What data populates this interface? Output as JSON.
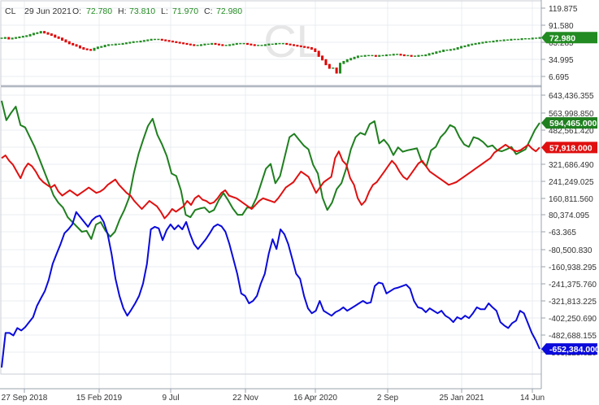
{
  "header": {
    "symbol": "CL",
    "date": "29 Jun 2021",
    "open_label": "O:",
    "open": "72.780",
    "high_label": "H:",
    "high": "73.810",
    "low_label": "L:",
    "low": "71.970",
    "close_label": "C:",
    "close": "72.980"
  },
  "watermark": "CL",
  "colors": {
    "up": "#228b22",
    "down": "#e00000",
    "green_series": "#1f7f1f",
    "red_series": "#e01010",
    "blue_series": "#0a0adc",
    "grid": "#e8ecf1",
    "axis_text": "#333333"
  },
  "chart_data": {
    "type": "line",
    "x_labels": [
      "27 Sep 2018",
      "15 Feb 2019",
      "9 Jul",
      "22 Nov",
      "16 Apr 2020",
      "2 Sep",
      "25 Jan 2021",
      "14 Jun"
    ],
    "panels": [
      {
        "name": "price",
        "type": "candlestick",
        "y_ticks": [
          "119.875",
          "91.580",
          "63.285",
          "34.995",
          "6.695"
        ],
        "ylim": [
          0,
          125
        ],
        "last_value_label": "72.980",
        "series": [
          {
            "values": [
              72,
              73,
              71,
              72,
              73,
              74,
              75,
              76,
              78,
              80,
              81,
              83,
              81,
              79,
              77,
              74,
              72,
              69,
              66,
              63,
              61,
              59,
              56,
              54,
              53,
              52,
              55,
              57,
              58,
              60,
              61,
              61,
              62,
              62,
              63,
              64,
              65,
              66,
              66,
              67,
              68,
              69,
              70,
              70,
              70,
              69,
              68,
              67,
              66,
              65,
              64,
              63,
              62,
              61,
              60,
              60,
              61,
              62,
              62,
              63,
              62,
              61,
              60,
              60,
              61,
              62,
              63,
              63,
              63,
              62,
              61,
              60,
              60,
              60,
              61,
              62,
              62,
              63,
              63,
              63,
              62,
              61,
              60,
              59,
              58,
              57,
              56,
              54,
              50,
              42,
              36,
              28,
              22,
              22,
              14,
              30,
              33,
              36,
              38,
              40,
              42,
              42,
              43,
              43,
              43,
              42,
              43,
              43,
              44,
              44,
              45,
              45,
              44,
              43,
              43,
              42,
              42,
              43,
              43,
              44,
              46,
              47,
              49,
              50,
              52,
              52,
              53,
              54,
              56,
              58,
              59,
              61,
              62,
              63,
              64,
              65,
              66,
              66,
              67,
              68,
              68,
              69,
              69,
              70,
              70,
              70,
              71,
              71,
              71,
              72,
              72,
              73
            ]
          }
        ]
      },
      {
        "name": "green",
        "y_ticks": [
          "643,436.355",
          "563,998.850",
          "482,561.420",
          "402,123.955",
          "321,686.490",
          "241,249.025",
          "160,811.560"
        ],
        "ylim": [
          80000,
          660000
        ],
        "last_value_label": "594,465.000",
        "series": [
          {
            "values": [
              640000,
              600000,
              615000,
              628000,
              590000,
              585000,
              565000,
              545000,
              520000,
              495000,
              470000,
              445000,
              430000,
              420000,
              400000,
              390000,
              380000,
              370000,
              372000,
              355000,
              385000,
              390000,
              372000,
              360000,
              370000,
              395000,
              415000,
              440000,
              490000,
              530000,
              560000,
              588000,
              603000,
              570000,
              550000,
              526000,
              490000,
              485000,
              455000,
              405000,
              400000,
              415000,
              418000,
              420000,
              410000,
              415000,
              435000,
              450000,
              435000,
              418000,
              405000,
              405000,
              420000,
              420000,
              440000,
              470000,
              500000,
              510000,
              470000,
              485000,
              525000,
              565000,
              572000,
              560000,
              548000,
              540000,
              508000,
              490000,
              440000,
              415000,
              430000,
              458000,
              470000,
              500000,
              540000,
              565000,
              574000,
              570000,
              592000,
              598000,
              552000,
              560000,
              548000,
              528000,
              544000,
              535000,
              538000,
              540000,
              542000,
              515000,
              505000,
              538000,
              545000,
              565000,
              575000,
              590000,
              585000,
              565000,
              550000,
              545000,
              565000,
              562000,
              555000,
              545000,
              548000,
              538000,
              536000,
              540000,
              545000,
              530000,
              535000,
              540000,
              560000,
              580000,
              594465
            ]
          }
        ]
      },
      {
        "name": "red",
        "y_ticks": [
          "80,374.095",
          "-63.365",
          "-80,500.830"
        ],
        "ylim": [
          -110000,
          100000
        ],
        "last_value_label": "57,918.000",
        "series": [
          {
            "values": [
              50000,
              52000,
              48000,
              45000,
              40000,
              35000,
              42000,
              46000,
              44000,
              40000,
              35000,
              32000,
              30000,
              28000,
              30000,
              25000,
              22000,
              24000,
              26000,
              24000,
              22000,
              24000,
              26000,
              28000,
              26000,
              24000,
              25000,
              27000,
              30000,
              32000,
              34000,
              30000,
              27000,
              24000,
              22000,
              18000,
              15000,
              12000,
              15000,
              18000,
              16000,
              14000,
              10000,
              5000,
              8000,
              12000,
              10000,
              12000,
              14000,
              18000,
              15000,
              20000,
              22000,
              19000,
              18000,
              16000,
              17000,
              20000,
              24000,
              26000,
              22000,
              21000,
              20000,
              18000,
              16000,
              14000,
              12000,
              15000,
              18000,
              20000,
              19000,
              18000,
              17000,
              20000,
              24000,
              28000,
              30000,
              32000,
              36000,
              40000,
              38000,
              36000,
              30000,
              24000,
              28000,
              32000,
              34000,
              36000,
              50000,
              55000,
              48000,
              45000,
              35000,
              30000,
              20000,
              15000,
              18000,
              25000,
              30000,
              32000,
              36000,
              40000,
              44000,
              48000,
              45000,
              40000,
              36000,
              34000,
              38000,
              42000,
              46000,
              48000,
              44000,
              40000,
              38000,
              36000,
              34000,
              32000,
              30000,
              31000,
              32000,
              34000,
              36000,
              38000,
              40000,
              42000,
              44000,
              46000,
              48000,
              50000,
              54000,
              56000,
              58000,
              60000,
              58000,
              56000,
              55000,
              56000,
              58000,
              60000,
              57000,
              55000,
              57918
            ]
          }
        ]
      },
      {
        "name": "blue",
        "y_ticks": [
          "-160,938.295",
          "-241,375.760",
          "-321,813.225",
          "-402,250.690",
          "-482,688.155",
          "-563,125.620"
        ],
        "ylim": [
          -700000,
          -130000
        ],
        "last_value_label": "-652,384.000",
        "series": [
          {
            "values": [
              -690000,
              -620000,
              -620000,
              -625000,
              -610000,
              -615000,
              -608000,
              -598000,
              -588000,
              -565000,
              -550000,
              -535000,
              -512000,
              -480000,
              -460000,
              -440000,
              -418000,
              -410000,
              -400000,
              -375000,
              -385000,
              -395000,
              -405000,
              -392000,
              -385000,
              -382000,
              -395000,
              -420000,
              -460000,
              -510000,
              -545000,
              -570000,
              -585000,
              -573000,
              -560000,
              -545000,
              -520000,
              -480000,
              -410000,
              -405000,
              -408000,
              -432000,
              -412000,
              -400000,
              -410000,
              -402000,
              -410000,
              -395000,
              -420000,
              -440000,
              -450000,
              -440000,
              -430000,
              -418000,
              -405000,
              -400000,
              -404000,
              -415000,
              -440000,
              -470000,
              -500000,
              -540000,
              -545000,
              -560000,
              -555000,
              -545000,
              -520000,
              -500000,
              -460000,
              -430000,
              -450000,
              -410000,
              -420000,
              -440000,
              -470000,
              -500000,
              -510000,
              -545000,
              -570000,
              -580000,
              -575000,
              -555000,
              -575000,
              -580000,
              -585000,
              -578000,
              -574000,
              -568000,
              -575000,
              -570000,
              -565000,
              -560000,
              -555000,
              -560000,
              -558000,
              -525000,
              -518000,
              -520000,
              -540000,
              -535000,
              -530000,
              -528000,
              -525000,
              -522000,
              -530000,
              -555000,
              -568000,
              -570000,
              -578000,
              -570000,
              -575000,
              -580000,
              -575000,
              -585000,
              -590000,
              -598000,
              -588000,
              -592000,
              -585000,
              -590000,
              -580000,
              -568000,
              -572000,
              -572000,
              -560000,
              -568000,
              -575000,
              -598000,
              -605000,
              -610000,
              -600000,
              -595000,
              -575000,
              -580000,
              -600000,
              -620000,
              -635000,
              -652384
            ]
          }
        ]
      }
    ]
  }
}
